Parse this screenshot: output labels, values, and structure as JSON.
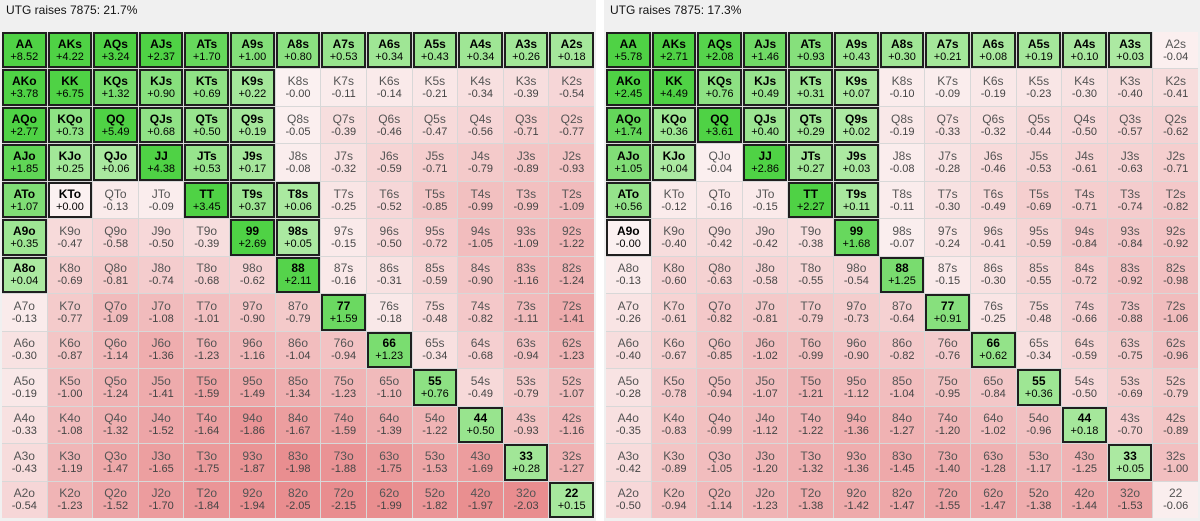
{
  "panels": [
    {
      "title": "UTG raises 7875: 21.7%",
      "ranks": [
        "A",
        "K",
        "Q",
        "J",
        "T",
        "9",
        "8",
        "7",
        "6",
        "5",
        "4",
        "3",
        "2"
      ],
      "ev": [
        [
          "+8.52",
          "+4.22",
          "+3.24",
          "+2.37",
          "+1.70",
          "+1.00",
          "+0.80",
          "+0.53",
          "+0.34",
          "+0.43",
          "+0.34",
          "+0.26",
          "+0.18"
        ],
        [
          "+3.78",
          "+6.75",
          "+1.32",
          "+0.90",
          "+0.69",
          "+0.22",
          "-0.00",
          "-0.11",
          "-0.14",
          "-0.21",
          "-0.34",
          "-0.39",
          "-0.54"
        ],
        [
          "+2.77",
          "+0.73",
          "+5.49",
          "+0.68",
          "+0.50",
          "+0.19",
          "-0.05",
          "-0.39",
          "-0.46",
          "-0.47",
          "-0.56",
          "-0.71",
          "-0.77"
        ],
        [
          "+1.85",
          "+0.25",
          "+0.06",
          "+4.38",
          "+0.53",
          "+0.17",
          "-0.08",
          "-0.32",
          "-0.59",
          "-0.71",
          "-0.79",
          "-0.89",
          "-0.93"
        ],
        [
          "+1.07",
          "+0.00",
          "-0.13",
          "-0.09",
          "+3.45",
          "+0.37",
          "+0.06",
          "-0.25",
          "-0.52",
          "-0.85",
          "-0.99",
          "-0.99",
          "-1.09"
        ],
        [
          "+0.35",
          "-0.47",
          "-0.58",
          "-0.50",
          "-0.39",
          "+2.69",
          "+0.05",
          "-0.15",
          "-0.50",
          "-0.72",
          "-1.05",
          "-1.09",
          "-1.22"
        ],
        [
          "+0.04",
          "-0.69",
          "-0.81",
          "-0.74",
          "-0.68",
          "-0.62",
          "+2.11",
          "-0.16",
          "-0.31",
          "-0.59",
          "-0.90",
          "-1.16",
          "-1.24"
        ],
        [
          "-0.13",
          "-0.77",
          "-1.09",
          "-1.08",
          "-1.01",
          "-0.90",
          "-0.79",
          "+1.59",
          "-0.18",
          "-0.48",
          "-0.82",
          "-1.11",
          "-1.41"
        ],
        [
          "-0.30",
          "-0.87",
          "-1.14",
          "-1.36",
          "-1.23",
          "-1.16",
          "-1.04",
          "-0.94",
          "+1.23",
          "-0.34",
          "-0.68",
          "-0.94",
          "-1.23"
        ],
        [
          "-0.19",
          "-1.00",
          "-1.24",
          "-1.41",
          "-1.59",
          "-1.49",
          "-1.34",
          "-1.23",
          "-1.10",
          "+0.76",
          "-0.49",
          "-0.79",
          "-1.07"
        ],
        [
          "-0.33",
          "-1.08",
          "-1.32",
          "-1.52",
          "-1.64",
          "-1.86",
          "-1.67",
          "-1.59",
          "-1.39",
          "-1.22",
          "+0.50",
          "-0.93",
          "-1.16"
        ],
        [
          "-0.43",
          "-1.19",
          "-1.47",
          "-1.65",
          "-1.75",
          "-1.87",
          "-1.98",
          "-1.88",
          "-1.75",
          "-1.53",
          "-1.69",
          "+0.28",
          "-1.27"
        ],
        [
          "-0.54",
          "-1.23",
          "-1.52",
          "-1.70",
          "-1.84",
          "-1.94",
          "-2.05",
          "-2.15",
          "-1.99",
          "-1.82",
          "-1.97",
          "-2.03",
          "+0.15"
        ]
      ],
      "raise": [
        [
          1,
          1,
          1,
          1,
          1,
          1,
          1,
          1,
          1,
          1,
          1,
          1,
          1
        ],
        [
          1,
          1,
          1,
          1,
          1,
          1,
          0,
          0,
          0,
          0,
          0,
          0,
          0
        ],
        [
          1,
          1,
          1,
          1,
          1,
          1,
          0,
          0,
          0,
          0,
          0,
          0,
          0
        ],
        [
          1,
          1,
          1,
          1,
          1,
          1,
          0,
          0,
          0,
          0,
          0,
          0,
          0
        ],
        [
          1,
          1,
          0,
          0,
          1,
          1,
          1,
          0,
          0,
          0,
          0,
          0,
          0
        ],
        [
          1,
          0,
          0,
          0,
          0,
          1,
          1,
          0,
          0,
          0,
          0,
          0,
          0
        ],
        [
          1,
          0,
          0,
          0,
          0,
          0,
          1,
          0,
          0,
          0,
          0,
          0,
          0
        ],
        [
          0,
          0,
          0,
          0,
          0,
          0,
          0,
          1,
          0,
          0,
          0,
          0,
          0
        ],
        [
          0,
          0,
          0,
          0,
          0,
          0,
          0,
          0,
          1,
          0,
          0,
          0,
          0
        ],
        [
          0,
          0,
          0,
          0,
          0,
          0,
          0,
          0,
          0,
          1,
          0,
          0,
          0
        ],
        [
          0,
          0,
          0,
          0,
          0,
          0,
          0,
          0,
          0,
          0,
          1,
          0,
          0
        ],
        [
          0,
          0,
          0,
          0,
          0,
          0,
          0,
          0,
          0,
          0,
          0,
          1,
          0
        ],
        [
          0,
          0,
          0,
          0,
          0,
          0,
          0,
          0,
          0,
          0,
          0,
          0,
          1
        ]
      ]
    },
    {
      "title": "UTG raises 7875: 17.3%",
      "ranks": [
        "A",
        "K",
        "Q",
        "J",
        "T",
        "9",
        "8",
        "7",
        "6",
        "5",
        "4",
        "3",
        "2"
      ],
      "ev": [
        [
          "+5.78",
          "+2.71",
          "+2.08",
          "+1.46",
          "+0.93",
          "+0.43",
          "+0.30",
          "+0.21",
          "+0.08",
          "+0.19",
          "+0.10",
          "+0.03",
          "-0.04"
        ],
        [
          "+2.45",
          "+4.49",
          "+0.76",
          "+0.49",
          "+0.31",
          "+0.07",
          "-0.10",
          "-0.09",
          "-0.19",
          "-0.23",
          "-0.30",
          "-0.40",
          "-0.41"
        ],
        [
          "+1.74",
          "+0.36",
          "+3.61",
          "+0.40",
          "+0.29",
          "+0.02",
          "-0.19",
          "-0.33",
          "-0.32",
          "-0.44",
          "-0.50",
          "-0.57",
          "-0.62"
        ],
        [
          "+1.05",
          "+0.04",
          "-0.04",
          "+2.86",
          "+0.27",
          "+0.03",
          "-0.08",
          "-0.28",
          "-0.46",
          "-0.53",
          "-0.61",
          "-0.63",
          "-0.71"
        ],
        [
          "+0.56",
          "-0.12",
          "-0.16",
          "-0.15",
          "+2.27",
          "+0.11",
          "-0.11",
          "-0.30",
          "-0.49",
          "-0.69",
          "-0.71",
          "-0.74",
          "-0.82"
        ],
        [
          "-0.00",
          "-0.40",
          "-0.42",
          "-0.42",
          "-0.38",
          "+1.68",
          "-0.07",
          "-0.24",
          "-0.41",
          "-0.59",
          "-0.84",
          "-0.84",
          "-0.92"
        ],
        [
          "-0.13",
          "-0.60",
          "-0.63",
          "-0.58",
          "-0.55",
          "-0.54",
          "+1.25",
          "-0.15",
          "-0.30",
          "-0.55",
          "-0.72",
          "-0.92",
          "-0.98"
        ],
        [
          "-0.26",
          "-0.61",
          "-0.82",
          "-0.81",
          "-0.79",
          "-0.73",
          "-0.64",
          "+0.91",
          "-0.25",
          "-0.48",
          "-0.66",
          "-0.88",
          "-1.06"
        ],
        [
          "-0.40",
          "-0.67",
          "-0.85",
          "-1.02",
          "-0.99",
          "-0.90",
          "-0.82",
          "-0.76",
          "+0.62",
          "-0.34",
          "-0.59",
          "-0.75",
          "-0.96"
        ],
        [
          "-0.28",
          "-0.78",
          "-0.94",
          "-1.07",
          "-1.21",
          "-1.12",
          "-1.04",
          "-0.95",
          "-0.84",
          "+0.36",
          "-0.50",
          "-0.69",
          "-0.79"
        ],
        [
          "-0.35",
          "-0.83",
          "-0.99",
          "-1.12",
          "-1.22",
          "-1.36",
          "-1.27",
          "-1.20",
          "-1.02",
          "-0.96",
          "+0.18",
          "-0.70",
          "-0.89"
        ],
        [
          "-0.42",
          "-0.89",
          "-1.05",
          "-1.20",
          "-1.32",
          "-1.36",
          "-1.45",
          "-1.40",
          "-1.28",
          "-1.17",
          "-1.25",
          "+0.05",
          "-1.00"
        ],
        [
          "-0.50",
          "-0.94",
          "-1.14",
          "-1.23",
          "-1.38",
          "-1.42",
          "-1.47",
          "-1.55",
          "-1.47",
          "-1.38",
          "-1.44",
          "-1.53",
          "-0.06"
        ]
      ],
      "raise": [
        [
          1,
          1,
          1,
          1,
          1,
          1,
          1,
          1,
          1,
          1,
          1,
          1,
          0
        ],
        [
          1,
          1,
          1,
          1,
          1,
          1,
          0,
          0,
          0,
          0,
          0,
          0,
          0
        ],
        [
          1,
          1,
          1,
          1,
          1,
          1,
          0,
          0,
          0,
          0,
          0,
          0,
          0
        ],
        [
          1,
          1,
          0,
          1,
          1,
          1,
          0,
          0,
          0,
          0,
          0,
          0,
          0
        ],
        [
          1,
          0,
          0,
          0,
          1,
          1,
          0,
          0,
          0,
          0,
          0,
          0,
          0
        ],
        [
          1,
          0,
          0,
          0,
          0,
          1,
          0,
          0,
          0,
          0,
          0,
          0,
          0
        ],
        [
          0,
          0,
          0,
          0,
          0,
          0,
          1,
          0,
          0,
          0,
          0,
          0,
          0
        ],
        [
          0,
          0,
          0,
          0,
          0,
          0,
          0,
          1,
          0,
          0,
          0,
          0,
          0
        ],
        [
          0,
          0,
          0,
          0,
          0,
          0,
          0,
          0,
          1,
          0,
          0,
          0,
          0
        ],
        [
          0,
          0,
          0,
          0,
          0,
          0,
          0,
          0,
          0,
          1,
          0,
          0,
          0
        ],
        [
          0,
          0,
          0,
          0,
          0,
          0,
          0,
          0,
          0,
          0,
          1,
          0,
          0
        ],
        [
          0,
          0,
          0,
          0,
          0,
          0,
          0,
          0,
          0,
          0,
          0,
          1,
          0
        ],
        [
          0,
          0,
          0,
          0,
          0,
          0,
          0,
          0,
          0,
          0,
          0,
          0,
          0
        ]
      ]
    }
  ],
  "colors": {
    "raise_light": "#ccf1c2",
    "raise_strong": "#4fd245",
    "fold_light": "#fbf1f1",
    "fold_strong": "#e98d8f"
  }
}
